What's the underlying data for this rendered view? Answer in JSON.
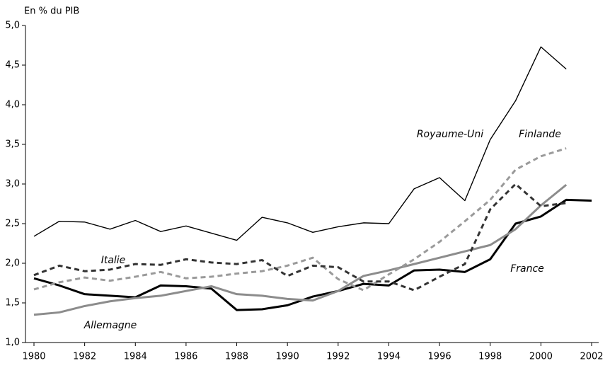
{
  "chart_data": {
    "type": "line",
    "y_axis_label": "En % du PIB",
    "x": [
      1980,
      1981,
      1982,
      1983,
      1984,
      1985,
      1986,
      1987,
      1988,
      1989,
      1990,
      1991,
      1992,
      1993,
      1994,
      1995,
      1996,
      1997,
      1998,
      1999,
      2000,
      2001,
      2002
    ],
    "series": [
      {
        "name": "Royaume-Uni",
        "color": "#000000",
        "style": "thin",
        "values": [
          2.34,
          2.53,
          2.52,
          2.43,
          2.54,
          2.4,
          2.47,
          2.38,
          2.29,
          2.58,
          2.51,
          2.39,
          2.46,
          2.51,
          2.5,
          2.94,
          3.08,
          2.79,
          3.56,
          4.05,
          4.73,
          4.45,
          null
        ]
      },
      {
        "name": "France",
        "color": "#000000",
        "style": "solid",
        "values": [
          1.81,
          1.72,
          1.61,
          1.59,
          1.57,
          1.72,
          1.71,
          1.68,
          1.41,
          1.42,
          1.47,
          1.58,
          1.65,
          1.74,
          1.72,
          1.91,
          1.92,
          1.89,
          2.05,
          2.5,
          2.59,
          2.8,
          2.79
        ]
      },
      {
        "name": "Allemagne",
        "color": "#8c8c8c",
        "style": "solid",
        "values": [
          1.35,
          1.38,
          1.46,
          1.52,
          1.56,
          1.59,
          1.65,
          1.71,
          1.61,
          1.59,
          1.55,
          1.53,
          1.65,
          1.84,
          1.91,
          1.99,
          2.07,
          2.15,
          2.23,
          2.43,
          2.73,
          2.99,
          null
        ]
      },
      {
        "name": "Finlande",
        "color": "#9a9a9a",
        "style": "dashed",
        "values": [
          1.67,
          1.76,
          1.82,
          1.78,
          1.83,
          1.89,
          1.81,
          1.83,
          1.87,
          1.9,
          1.97,
          2.07,
          1.8,
          1.66,
          1.86,
          2.05,
          2.27,
          2.53,
          2.8,
          3.18,
          3.35,
          3.45,
          null
        ]
      },
      {
        "name": "Italie",
        "color": "#333333",
        "style": "dashed",
        "values": [
          1.85,
          1.97,
          1.9,
          1.92,
          1.99,
          1.98,
          2.05,
          2.01,
          1.99,
          2.04,
          1.84,
          1.97,
          1.95,
          1.77,
          1.77,
          1.66,
          1.83,
          1.99,
          2.68,
          3.0,
          2.72,
          2.76,
          null
        ]
      }
    ],
    "xlim": [
      1980,
      2002
    ],
    "xticks": [
      1980,
      1982,
      1984,
      1986,
      1988,
      1990,
      1992,
      1994,
      1996,
      1998,
      2000,
      2002
    ],
    "ylim": [
      1,
      5
    ],
    "yticks": [
      {
        "value": 1,
        "label": "1,0"
      },
      {
        "value": 1.5,
        "label": "1,5"
      },
      {
        "value": 2,
        "label": "2,0"
      },
      {
        "value": 2.5,
        "label": "2,5"
      },
      {
        "value": 3,
        "label": "3,0"
      },
      {
        "value": 3.5,
        "label": "3,5"
      },
      {
        "value": 4,
        "label": "4,0"
      },
      {
        "value": 4.5,
        "label": "4,5"
      },
      {
        "value": 5,
        "label": "5,0"
      }
    ],
    "grid": false
  }
}
